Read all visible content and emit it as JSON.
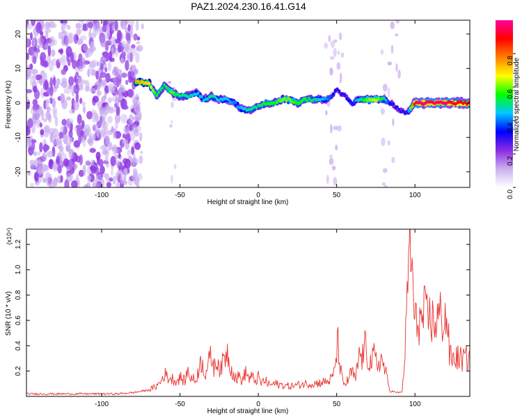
{
  "title": "PAZ1.2024.230.16.41.G14",
  "chart_data": [
    {
      "type": "heatmap",
      "xlabel": "Height of straight line (km)",
      "ylabel": "Frequency (Hz)",
      "xlim": [
        -148,
        135
      ],
      "ylim": [
        -24.5,
        24
      ],
      "xticks": [
        -100,
        -50,
        0,
        50,
        100
      ],
      "xtick_labels": [
        "-100",
        "-50",
        "0",
        "50",
        "100"
      ],
      "yticks": [
        -20,
        -10,
        0,
        10,
        20
      ],
      "ytick_labels": [
        "-20",
        "-10",
        "0",
        "10",
        "20"
      ],
      "colorbar": {
        "label": "Normalized spectral amplitude",
        "range": [
          0.0,
          1.0
        ],
        "ticks": [
          0.0,
          0.2,
          0.4,
          0.6,
          0.8
        ],
        "tick_labels": [
          "0.0",
          "0.2",
          "0.4",
          "0.6",
          "0.8"
        ],
        "colors": [
          "#ffffff",
          "#c9b0ef",
          "#8a2be2",
          "#0000ff",
          "#00c8ff",
          "#00ff00",
          "#ffff00",
          "#ff8000",
          "#ff0000",
          "#ff00a0"
        ]
      },
      "ridge": {
        "x": [
          -78,
          -70,
          -65,
          -60,
          -55,
          -50,
          -45,
          -40,
          -35,
          -30,
          -25,
          -20,
          -15,
          -10,
          -5,
          0,
          5,
          10,
          15,
          20,
          25,
          30,
          35,
          40,
          45,
          50,
          55,
          60,
          65,
          70,
          75,
          80,
          85,
          90,
          95,
          100,
          105,
          110,
          115,
          120,
          125,
          130,
          135
        ],
        "frequency": [
          6,
          6,
          2,
          5,
          3,
          2,
          2,
          3,
          1,
          2,
          1,
          1,
          0,
          -2,
          -2,
          -1,
          0,
          0,
          1,
          1,
          0,
          1,
          1,
          1,
          1,
          4,
          2,
          0,
          1,
          1,
          1,
          1,
          0,
          -2,
          -3,
          0,
          0,
          0,
          0,
          0,
          0,
          0,
          0
        ],
        "amplitude": [
          0.75,
          0.7,
          0.55,
          0.5,
          0.6,
          0.5,
          0.5,
          0.45,
          0.45,
          0.5,
          0.45,
          0.45,
          0.4,
          0.45,
          0.5,
          0.5,
          0.55,
          0.55,
          0.6,
          0.6,
          0.55,
          0.55,
          0.5,
          0.45,
          0.4,
          0.3,
          0.3,
          0.35,
          0.5,
          0.6,
          0.65,
          0.5,
          0.3,
          0.3,
          0.3,
          0.95,
          0.95,
          0.95,
          0.95,
          0.95,
          0.9,
          0.9,
          0.9
        ]
      }
    },
    {
      "type": "line",
      "xlabel": "Height of straight line (km)",
      "ylabel": "SNR (10 * v/v)",
      "y_multiplier": "(x10⁴)",
      "xlim": [
        -148,
        135
      ],
      "ylim": [
        0,
        1.32
      ],
      "xticks": [
        -100,
        -50,
        0,
        50,
        100
      ],
      "xtick_labels": [
        "-100",
        "-50",
        "0",
        "50",
        "100"
      ],
      "yticks": [
        0.2,
        0.4,
        0.6,
        0.8,
        1.0,
        1.2
      ],
      "ytick_labels": [
        "0.2",
        "0.4",
        "0.6",
        "0.8",
        "1.0",
        "1.2"
      ],
      "series": [
        {
          "color": "#e8322e",
          "x": [
            -148,
            -140,
            -130,
            -120,
            -110,
            -100,
            -90,
            -80,
            -75,
            -70,
            -65,
            -62,
            -60,
            -58,
            -55,
            -52,
            -50,
            -47,
            -45,
            -43,
            -40,
            -38,
            -36,
            -34,
            -32,
            -30,
            -28,
            -26,
            -24,
            -22,
            -20,
            -18,
            -16,
            -14,
            -12,
            -10,
            -8,
            -6,
            -4,
            -2,
            0,
            2,
            4,
            6,
            8,
            10,
            15,
            20,
            25,
            30,
            35,
            40,
            45,
            48,
            50,
            51,
            52,
            54,
            56,
            58,
            60,
            62,
            64,
            65,
            66,
            68,
            70,
            72,
            74,
            76,
            78,
            80,
            82,
            84,
            86,
            88,
            90,
            92,
            94,
            95,
            96,
            97,
            98,
            99,
            100,
            102,
            104,
            106,
            108,
            110,
            112,
            114,
            116,
            118,
            120,
            121,
            122,
            124,
            126,
            128,
            130,
            132,
            135
          ],
          "y": [
            0.02,
            0.02,
            0.02,
            0.02,
            0.02,
            0.02,
            0.02,
            0.03,
            0.04,
            0.05,
            0.08,
            0.12,
            0.18,
            0.15,
            0.14,
            0.12,
            0.15,
            0.12,
            0.2,
            0.15,
            0.12,
            0.22,
            0.28,
            0.18,
            0.25,
            0.32,
            0.22,
            0.3,
            0.2,
            0.3,
            0.36,
            0.25,
            0.18,
            0.14,
            0.16,
            0.12,
            0.2,
            0.14,
            0.15,
            0.12,
            0.15,
            0.1,
            0.13,
            0.1,
            0.09,
            0.1,
            0.09,
            0.08,
            0.09,
            0.1,
            0.1,
            0.11,
            0.12,
            0.16,
            0.35,
            0.43,
            0.25,
            0.1,
            0.1,
            0.15,
            0.2,
            0.12,
            0.3,
            0.35,
            0.28,
            0.4,
            0.3,
            0.26,
            0.32,
            0.24,
            0.3,
            0.25,
            0.15,
            0.04,
            0.04,
            0.03,
            0.03,
            0.04,
            0.45,
            0.7,
            1.1,
            1.3,
            0.95,
            0.8,
            0.55,
            0.62,
            0.58,
            0.66,
            0.6,
            0.63,
            0.57,
            0.61,
            0.64,
            0.6,
            0.62,
            0.55,
            0.33,
            0.29,
            0.31,
            0.3,
            0.29,
            0.3,
            0.3
          ]
        }
      ]
    }
  ]
}
